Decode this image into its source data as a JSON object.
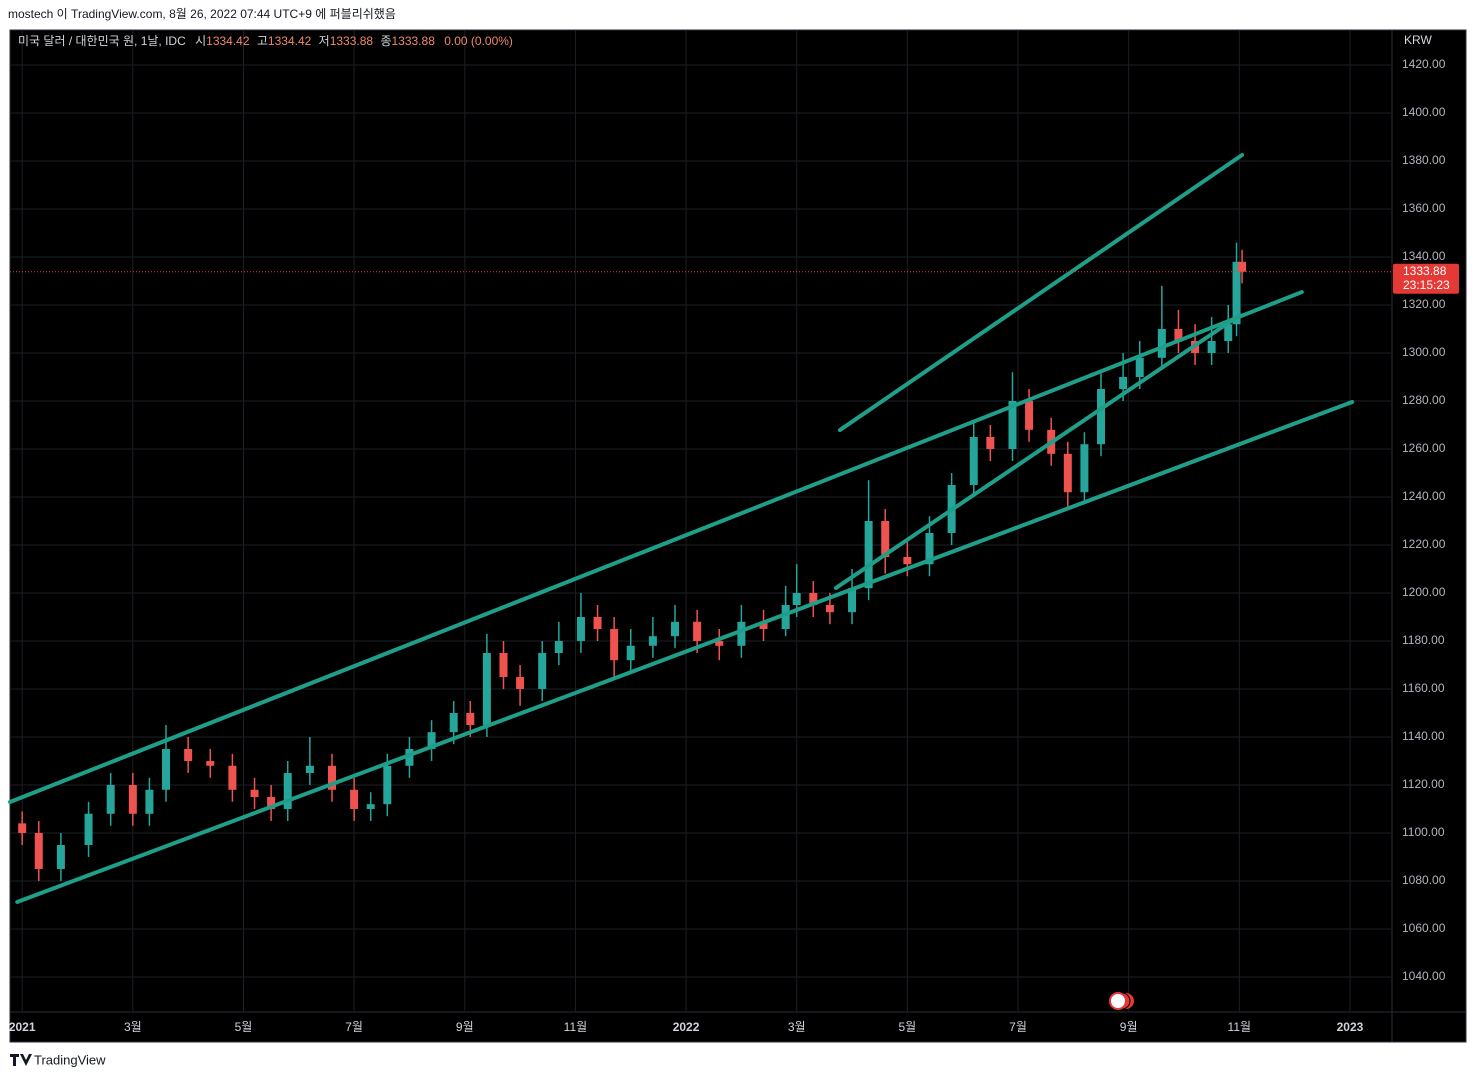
{
  "header": "mostech 이 TradingView.com, 8월 26, 2022 07:44 UTC+9 에 퍼블리쉬했음",
  "footer": "TradingView",
  "chart_data": {
    "type": "candlestick",
    "legend": {
      "symbol": "미국 달러 / 대한민국 원, 1날, IDC",
      "open_label": "시",
      "open": 1334.42,
      "high_label": "고",
      "high": 1334.42,
      "low_label": "저",
      "low": 1333.88,
      "close_label": "종",
      "close": 1333.88,
      "change": "0.00 (0.00%)"
    },
    "currency": "KRW",
    "countdown": "23:15:23",
    "up_color": "#26a69a",
    "down_color": "#ef5350",
    "trendline_color": "#1f9f8a",
    "price_line_color": "#e53935",
    "grid": true,
    "xlim": [
      -0.22,
      24.76
    ],
    "xticks": [
      {
        "value": 0,
        "label": "2021"
      },
      {
        "value": 2,
        "label": "3월"
      },
      {
        "value": 4,
        "label": "5월"
      },
      {
        "value": 6,
        "label": "7월"
      },
      {
        "value": 8,
        "label": "9월"
      },
      {
        "value": 10,
        "label": "11월"
      },
      {
        "value": 12,
        "label": "2022"
      },
      {
        "value": 14,
        "label": "3월"
      },
      {
        "value": 16,
        "label": "5월"
      },
      {
        "value": 18,
        "label": "7월"
      },
      {
        "value": 20,
        "label": "9월"
      },
      {
        "value": 22,
        "label": "11월"
      },
      {
        "value": 24,
        "label": "2023"
      }
    ],
    "ylim": [
      1025.4,
      1434.6
    ],
    "yticks": [
      {
        "value": 1040,
        "label": "1040.00"
      },
      {
        "value": 1060,
        "label": "1060.00"
      },
      {
        "value": 1080,
        "label": "1080.00"
      },
      {
        "value": 1100,
        "label": "1100.00"
      },
      {
        "value": 1120,
        "label": "1120.00"
      },
      {
        "value": 1140,
        "label": "1140.00"
      },
      {
        "value": 1160,
        "label": "1160.00"
      },
      {
        "value": 1180,
        "label": "1180.00"
      },
      {
        "value": 1200,
        "label": "1200.00"
      },
      {
        "value": 1220,
        "label": "1220.00"
      },
      {
        "value": 1240,
        "label": "1240.00"
      },
      {
        "value": 1260,
        "label": "1260.00"
      },
      {
        "value": 1280,
        "label": "1280.00"
      },
      {
        "value": 1300,
        "label": "1300.00"
      },
      {
        "value": 1320,
        "label": "1320.00"
      },
      {
        "value": 1340,
        "label": "1340.00"
      },
      {
        "value": 1360,
        "label": "1360.00"
      },
      {
        "value": 1380,
        "label": "1380.00"
      },
      {
        "value": 1400,
        "label": "1400.00"
      },
      {
        "value": 1420,
        "label": "1420.00"
      }
    ],
    "x": [
      0,
      0.3,
      0.7,
      1.2,
      1.6,
      2.0,
      2.3,
      2.6,
      3.0,
      3.4,
      3.8,
      4.2,
      4.5,
      4.8,
      5.2,
      5.6,
      6.0,
      6.3,
      6.6,
      7.0,
      7.4,
      7.8,
      8.1,
      8.4,
      8.7,
      9.0,
      9.4,
      9.7,
      10.1,
      10.4,
      10.7,
      11.0,
      11.4,
      11.8,
      12.2,
      12.6,
      13.0,
      13.4,
      13.8,
      14.0,
      14.3,
      14.6,
      15.0,
      15.3,
      15.6,
      16.0,
      16.4,
      16.8,
      17.2,
      17.5,
      17.9,
      18.2,
      18.6,
      18.9,
      19.2,
      19.5,
      19.9,
      20.2,
      20.6,
      20.9,
      21.2,
      21.5,
      21.8,
      21.95,
      22.05
    ],
    "open": [
      1104,
      1100,
      1085,
      1095,
      1108,
      1120,
      1108,
      1118,
      1135,
      1130,
      1128,
      1118,
      1115,
      1110,
      1125,
      1128,
      1118,
      1110,
      1112,
      1128,
      1135,
      1142,
      1150,
      1145,
      1175,
      1165,
      1160,
      1175,
      1180,
      1190,
      1185,
      1172,
      1178,
      1182,
      1188,
      1180,
      1178,
      1188,
      1185,
      1195,
      1200,
      1195,
      1192,
      1202,
      1230,
      1215,
      1212,
      1225,
      1245,
      1265,
      1260,
      1280,
      1268,
      1258,
      1242,
      1262,
      1285,
      1290,
      1298,
      1310,
      1305,
      1300,
      1305,
      1312,
      1338
    ],
    "high": [
      1109,
      1105,
      1100,
      1113,
      1125,
      1125,
      1123,
      1145,
      1140,
      1135,
      1133,
      1123,
      1120,
      1130,
      1140,
      1133,
      1123,
      1117,
      1133,
      1140,
      1147,
      1155,
      1155,
      1183,
      1180,
      1170,
      1180,
      1188,
      1200,
      1195,
      1190,
      1185,
      1190,
      1195,
      1193,
      1185,
      1195,
      1193,
      1203,
      1212,
      1205,
      1200,
      1210,
      1247,
      1235,
      1222,
      1232,
      1250,
      1272,
      1270,
      1292,
      1285,
      1273,
      1263,
      1267,
      1292,
      1300,
      1305,
      1328,
      1318,
      1312,
      1315,
      1320,
      1346,
      1343
    ],
    "low": [
      1095,
      1080,
      1080,
      1090,
      1103,
      1103,
      1103,
      1113,
      1125,
      1123,
      1113,
      1110,
      1105,
      1105,
      1120,
      1113,
      1105,
      1105,
      1107,
      1123,
      1130,
      1137,
      1140,
      1140,
      1160,
      1153,
      1155,
      1170,
      1175,
      1180,
      1165,
      1167,
      1173,
      1177,
      1175,
      1172,
      1173,
      1180,
      1182,
      1190,
      1190,
      1187,
      1187,
      1197,
      1208,
      1207,
      1207,
      1220,
      1240,
      1255,
      1255,
      1263,
      1253,
      1235,
      1237,
      1257,
      1280,
      1285,
      1293,
      1300,
      1295,
      1295,
      1300,
      1307,
      1329
    ],
    "close": [
      1100,
      1085,
      1095,
      1108,
      1120,
      1108,
      1118,
      1135,
      1130,
      1128,
      1118,
      1115,
      1110,
      1125,
      1128,
      1118,
      1110,
      1112,
      1128,
      1135,
      1142,
      1150,
      1145,
      1175,
      1165,
      1160,
      1175,
      1180,
      1190,
      1185,
      1172,
      1178,
      1182,
      1188,
      1180,
      1178,
      1188,
      1185,
      1195,
      1200,
      1195,
      1192,
      1202,
      1230,
      1215,
      1212,
      1225,
      1245,
      1265,
      1260,
      1280,
      1268,
      1258,
      1242,
      1262,
      1285,
      1290,
      1298,
      1310,
      1305,
      1300,
      1305,
      1312,
      1338,
      1333.88
    ],
    "trendlines": [
      {
        "x": [
          -0.22,
          23.13
        ],
        "y": [
          1112.9,
          1325.4
        ]
      },
      {
        "x": [
          -0.09,
          24.04
        ],
        "y": [
          1071.25,
          1279.6
        ]
      },
      {
        "x": [
          14.78,
          22.05
        ],
        "y": [
          1267.9,
          1382.5
        ]
      },
      {
        "x": [
          14.71,
          22.01
        ],
        "y": [
          1202.1,
          1315.8
        ]
      }
    ]
  }
}
